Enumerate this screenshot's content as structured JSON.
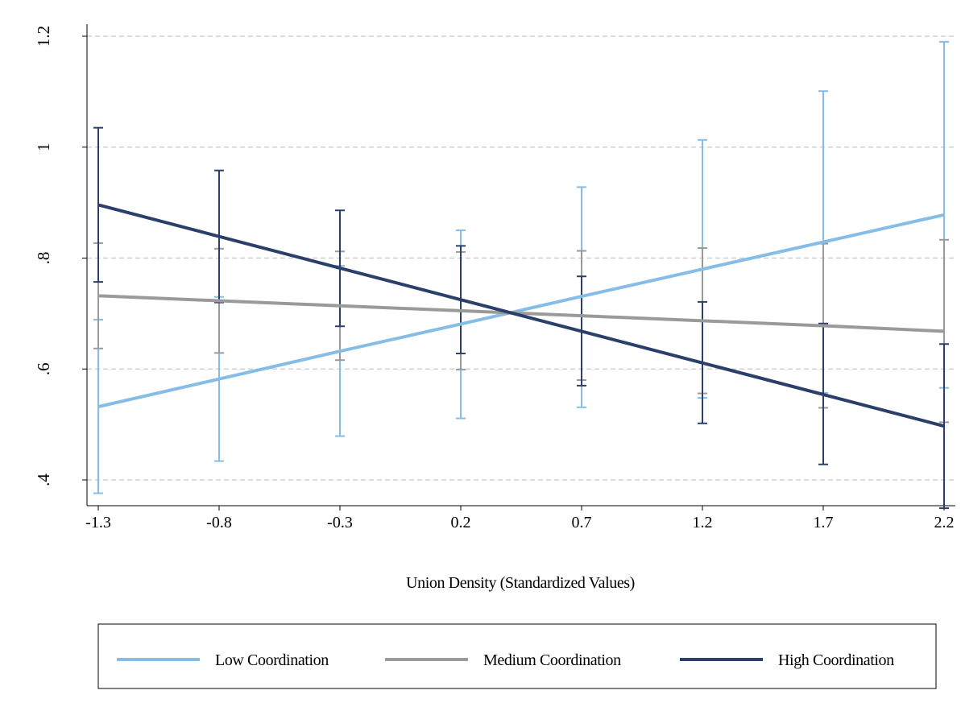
{
  "chart_data": {
    "type": "line",
    "title": "",
    "xlabel": "Union Density (Standardized Values)",
    "ylabel": "",
    "x": [
      -1.3,
      -0.8,
      -0.3,
      0.2,
      0.7,
      1.2,
      1.7,
      2.2
    ],
    "x_tick_labels": [
      "-1.3",
      "-0.8",
      "-0.3",
      "0.2",
      "0.7",
      "1.2",
      "1.7",
      "2.2"
    ],
    "xlim": [
      -1.3,
      2.2
    ],
    "ylim": [
      0.35,
      1.2
    ],
    "y_ticks": [
      0.4,
      0.6,
      0.8,
      1.0,
      1.2
    ],
    "y_tick_labels": [
      ".4",
      ".6",
      ".8",
      "1",
      "1.2"
    ],
    "grid": true,
    "legend_position": "bottom",
    "series": [
      {
        "name": "Low Coordination",
        "color": "#85bde6",
        "values": [
          0.532,
          0.582,
          0.632,
          0.681,
          0.731,
          0.78,
          0.829,
          0.878
        ],
        "lower": [
          0.376,
          0.434,
          0.479,
          0.511,
          0.531,
          0.548,
          0.557,
          0.566
        ],
        "upper": [
          0.689,
          0.73,
          0.786,
          0.85,
          0.928,
          1.013,
          1.101,
          1.19
        ]
      },
      {
        "name": "Medium Coordination",
        "color": "#9a9a9a",
        "values": [
          0.732,
          0.723,
          0.714,
          0.705,
          0.696,
          0.687,
          0.678,
          0.668
        ],
        "lower": [
          0.637,
          0.629,
          0.616,
          0.599,
          0.58,
          0.556,
          0.53,
          0.504
        ],
        "upper": [
          0.827,
          0.817,
          0.812,
          0.811,
          0.813,
          0.818,
          0.826,
          0.833
        ]
      },
      {
        "name": "High Coordination",
        "color": "#2b3f6b",
        "values": [
          0.896,
          0.839,
          0.782,
          0.725,
          0.668,
          0.611,
          0.554,
          0.497
        ],
        "lower": [
          0.757,
          0.72,
          0.677,
          0.628,
          0.57,
          0.502,
          0.428,
          0.349
        ],
        "upper": [
          1.035,
          0.958,
          0.886,
          0.822,
          0.767,
          0.721,
          0.682,
          0.645
        ]
      }
    ]
  }
}
